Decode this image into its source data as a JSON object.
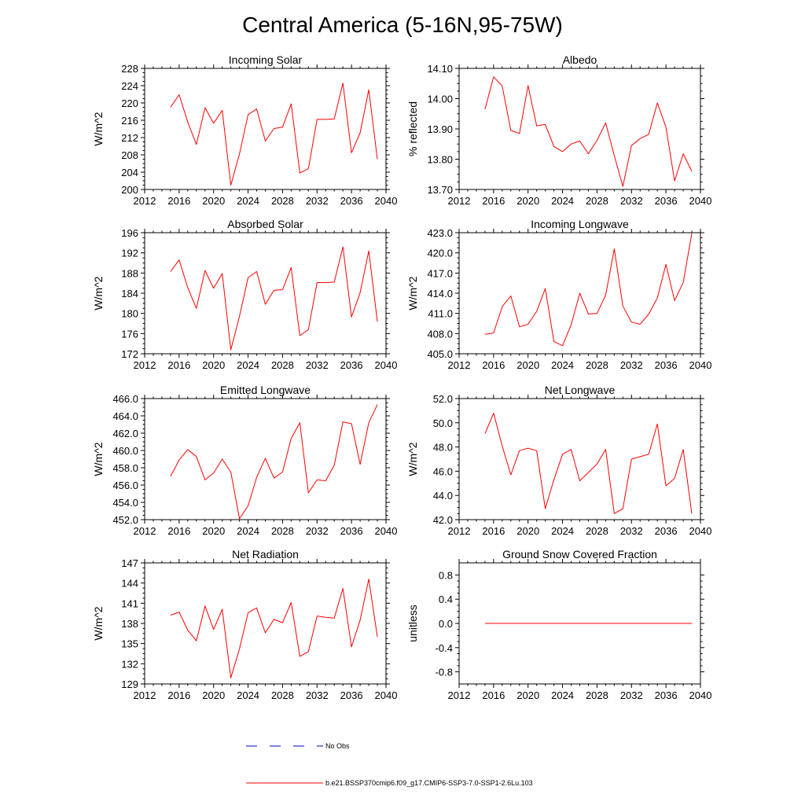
{
  "figure_title": "Central America (5-16N,95-75W)",
  "colors": {
    "model": "#ff0000",
    "obs": "#0000cc",
    "frame": "#000000"
  },
  "legend": [
    {
      "label": "No Obs",
      "style": "dashed",
      "color": "#0000cc"
    },
    {
      "label": "b.e21.BSSP370cmip6.f09_g17.CMIP6-SSP3-7.0-SSP1-2.6Lu.103",
      "style": "solid",
      "color": "#ff0000"
    }
  ],
  "chart_data": [
    {
      "type": "line",
      "title": "Incoming Solar",
      "ylabel": "W/m^2",
      "xlim": [
        2012,
        2040
      ],
      "ylim": [
        200,
        228
      ],
      "xticks": [
        2012,
        2016,
        2020,
        2024,
        2028,
        2032,
        2036,
        2040
      ],
      "xtick_labels": [
        "2012",
        "2016",
        "2020",
        "2024",
        "2028",
        "2032",
        "2036",
        "2040"
      ],
      "yticks": [
        200,
        204,
        208,
        212,
        216,
        220,
        224,
        228
      ],
      "ytick_labels": [
        "200",
        "204",
        "208",
        "212",
        "216",
        "220",
        "224",
        "228"
      ],
      "x": [
        2015,
        2016,
        2017,
        2018,
        2019,
        2020,
        2021,
        2022,
        2023,
        2024,
        2025,
        2026,
        2027,
        2028,
        2029,
        2030,
        2031,
        2032,
        2033,
        2034,
        2035,
        2036,
        2037,
        2038,
        2039
      ],
      "series": [
        {
          "name": "b.e21.BSSP370cmip6.f09_g17.CMIP6-SSP3-7.0-SSP1-2.6Lu.103",
          "values": [
            219.0,
            221.9,
            215.6,
            210.4,
            218.9,
            215.3,
            218.3,
            201.0,
            208.2,
            217.3,
            218.6,
            211.2,
            214.1,
            214.4,
            219.8,
            203.8,
            204.8,
            216.2,
            216.2,
            216.3,
            224.6,
            208.5,
            213.1,
            223.1,
            207.0
          ]
        }
      ]
    },
    {
      "type": "line",
      "title": "Albedo",
      "ylabel": "% reflected",
      "xlim": [
        2012,
        2040
      ],
      "ylim": [
        13.7,
        14.1
      ],
      "xticks": [
        2012,
        2016,
        2020,
        2024,
        2028,
        2032,
        2036,
        2040
      ],
      "xtick_labels": [
        "2012",
        "2016",
        "2020",
        "2024",
        "2028",
        "2032",
        "2036",
        "2040"
      ],
      "yticks": [
        13.7,
        13.8,
        13.9,
        14.0,
        14.1
      ],
      "ytick_labels": [
        "13.70",
        "13.80",
        "13.90",
        "14.00",
        "14.10"
      ],
      "x": [
        2015,
        2016,
        2017,
        2018,
        2019,
        2020,
        2021,
        2022,
        2023,
        2024,
        2025,
        2026,
        2027,
        2028,
        2029,
        2030,
        2031,
        2032,
        2033,
        2034,
        2035,
        2036,
        2037,
        2038,
        2039
      ],
      "series": [
        {
          "name": "b.e21.BSSP370cmip6.f09_g17.CMIP6-SSP3-7.0-SSP1-2.6Lu.103",
          "values": [
            13.965,
            14.072,
            14.042,
            13.895,
            13.885,
            14.043,
            13.91,
            13.915,
            13.842,
            13.825,
            13.85,
            13.86,
            13.818,
            13.862,
            13.92,
            13.812,
            13.71,
            13.845,
            13.868,
            13.882,
            13.986,
            13.906,
            13.728,
            13.818,
            13.76
          ]
        }
      ]
    },
    {
      "type": "line",
      "title": "Absorbed Solar",
      "ylabel": "W/m^2",
      "xlim": [
        2012,
        2040
      ],
      "ylim": [
        172,
        196
      ],
      "xticks": [
        2012,
        2016,
        2020,
        2024,
        2028,
        2032,
        2036,
        2040
      ],
      "xtick_labels": [
        "2012",
        "2016",
        "2020",
        "2024",
        "2028",
        "2032",
        "2036",
        "2040"
      ],
      "yticks": [
        172,
        176,
        180,
        184,
        188,
        192,
        196
      ],
      "ytick_labels": [
        "172",
        "176",
        "180",
        "184",
        "188",
        "192",
        "196"
      ],
      "x": [
        2015,
        2016,
        2017,
        2018,
        2019,
        2020,
        2021,
        2022,
        2023,
        2024,
        2025,
        2026,
        2027,
        2028,
        2029,
        2030,
        2031,
        2032,
        2033,
        2034,
        2035,
        2036,
        2037,
        2038,
        2039
      ],
      "series": [
        {
          "name": "b.e21.BSSP370cmip6.f09_g17.CMIP6-SSP3-7.0-SSP1-2.6Lu.103",
          "values": [
            188.3,
            190.6,
            185.1,
            181.0,
            188.5,
            185.0,
            187.9,
            172.8,
            179.4,
            187.1,
            188.3,
            181.8,
            184.6,
            184.7,
            189.1,
            175.6,
            176.8,
            186.1,
            186.1,
            186.2,
            193.2,
            179.3,
            184.1,
            192.4,
            178.4
          ]
        }
      ]
    },
    {
      "type": "line",
      "title": "Incoming Longwave",
      "ylabel": "W/m^2",
      "xlim": [
        2012,
        2040
      ],
      "ylim": [
        405,
        423
      ],
      "xticks": [
        2012,
        2016,
        2020,
        2024,
        2028,
        2032,
        2036,
        2040
      ],
      "xtick_labels": [
        "2012",
        "2016",
        "2020",
        "2024",
        "2028",
        "2032",
        "2036",
        "2040"
      ],
      "yticks": [
        405,
        408,
        411,
        414,
        417,
        420,
        423
      ],
      "ytick_labels": [
        "405.0",
        "408.0",
        "411.0",
        "414.0",
        "417.0",
        "420.0",
        "423.0"
      ],
      "x": [
        2015,
        2016,
        2017,
        2018,
        2019,
        2020,
        2021,
        2022,
        2023,
        2024,
        2025,
        2026,
        2027,
        2028,
        2029,
        2030,
        2031,
        2032,
        2033,
        2034,
        2035,
        2036,
        2037,
        2038,
        2039
      ],
      "series": [
        {
          "name": "b.e21.BSSP370cmip6.f09_g17.CMIP6-SSP3-7.0-SSP1-2.6Lu.103",
          "values": [
            407.9,
            408.1,
            412.0,
            413.6,
            409.0,
            409.4,
            411.3,
            414.7,
            406.8,
            406.2,
            409.3,
            414.0,
            410.9,
            411.0,
            413.7,
            420.6,
            412.1,
            409.7,
            409.4,
            410.9,
            413.3,
            418.3,
            412.9,
            415.6,
            422.9
          ]
        }
      ]
    },
    {
      "type": "line",
      "title": "Emitted Longwave",
      "ylabel": "W/m^2",
      "xlim": [
        2012,
        2040
      ],
      "ylim": [
        452,
        466
      ],
      "xticks": [
        2012,
        2016,
        2020,
        2024,
        2028,
        2032,
        2036,
        2040
      ],
      "xtick_labels": [
        "2012",
        "2016",
        "2020",
        "2024",
        "2028",
        "2032",
        "2036",
        "2040"
      ],
      "yticks": [
        452,
        454,
        456,
        458,
        460,
        462,
        464,
        466
      ],
      "ytick_labels": [
        "452.0",
        "454.0",
        "456.0",
        "458.0",
        "460.0",
        "462.0",
        "464.0",
        "466.0"
      ],
      "x": [
        2015,
        2016,
        2017,
        2018,
        2019,
        2020,
        2021,
        2022,
        2023,
        2024,
        2025,
        2026,
        2027,
        2028,
        2029,
        2030,
        2031,
        2032,
        2033,
        2034,
        2035,
        2036,
        2037,
        2038,
        2039
      ],
      "series": [
        {
          "name": "b.e21.BSSP370cmip6.f09_g17.CMIP6-SSP3-7.0-SSP1-2.6Lu.103",
          "values": [
            457.0,
            458.9,
            460.1,
            459.3,
            456.6,
            457.4,
            459.0,
            457.5,
            452.1,
            453.6,
            456.9,
            459.1,
            456.8,
            457.5,
            461.4,
            463.2,
            455.1,
            456.6,
            456.5,
            458.3,
            463.3,
            463.1,
            458.4,
            463.2,
            465.3
          ]
        }
      ]
    },
    {
      "type": "line",
      "title": "Net Longwave",
      "ylabel": "W/m^2",
      "xlim": [
        2012,
        2040
      ],
      "ylim": [
        42,
        52
      ],
      "xticks": [
        2012,
        2016,
        2020,
        2024,
        2028,
        2032,
        2036,
        2040
      ],
      "xtick_labels": [
        "2012",
        "2016",
        "2020",
        "2024",
        "2028",
        "2032",
        "2036",
        "2040"
      ],
      "yticks": [
        42,
        44,
        46,
        48,
        50,
        52
      ],
      "ytick_labels": [
        "42.0",
        "44.0",
        "46.0",
        "48.0",
        "50.0",
        "52.0"
      ],
      "x": [
        2015,
        2016,
        2017,
        2018,
        2019,
        2020,
        2021,
        2022,
        2023,
        2024,
        2025,
        2026,
        2027,
        2028,
        2029,
        2030,
        2031,
        2032,
        2033,
        2034,
        2035,
        2036,
        2037,
        2038,
        2039
      ],
      "series": [
        {
          "name": "b.e21.BSSP370cmip6.f09_g17.CMIP6-SSP3-7.0-SSP1-2.6Lu.103",
          "values": [
            49.1,
            50.8,
            48.1,
            45.7,
            47.7,
            47.9,
            47.7,
            42.9,
            45.3,
            47.4,
            47.8,
            45.2,
            45.9,
            46.6,
            47.8,
            42.5,
            42.9,
            47.0,
            47.2,
            47.4,
            49.9,
            44.8,
            45.4,
            47.8,
            42.5
          ]
        }
      ]
    },
    {
      "type": "line",
      "title": "Net Radiation",
      "ylabel": "W/m^2",
      "xlim": [
        2012,
        2040
      ],
      "ylim": [
        129,
        147
      ],
      "xticks": [
        2012,
        2016,
        2020,
        2024,
        2028,
        2032,
        2036,
        2040
      ],
      "xtick_labels": [
        "2012",
        "2016",
        "2020",
        "2024",
        "2028",
        "2032",
        "2036",
        "2040"
      ],
      "yticks": [
        129,
        132,
        135,
        138,
        141,
        144,
        147
      ],
      "ytick_labels": [
        "129",
        "132",
        "135",
        "138",
        "141",
        "144",
        "147"
      ],
      "x": [
        2015,
        2016,
        2017,
        2018,
        2019,
        2020,
        2021,
        2022,
        2023,
        2024,
        2025,
        2026,
        2027,
        2028,
        2029,
        2030,
        2031,
        2032,
        2033,
        2034,
        2035,
        2036,
        2037,
        2038,
        2039
      ],
      "series": [
        {
          "name": "b.e21.BSSP370cmip6.f09_g17.CMIP6-SSP3-7.0-SSP1-2.6Lu.103",
          "values": [
            139.2,
            139.7,
            137.0,
            135.4,
            140.6,
            137.1,
            140.1,
            129.9,
            134.2,
            139.6,
            140.3,
            136.6,
            138.6,
            138.1,
            141.1,
            133.1,
            133.8,
            139.1,
            138.9,
            138.8,
            143.2,
            134.5,
            138.5,
            144.6,
            136.0
          ]
        }
      ]
    },
    {
      "type": "line",
      "title": "Ground Snow Covered Fraction",
      "ylabel": "unitless",
      "xlim": [
        2012,
        2040
      ],
      "ylim": [
        -1.0,
        1.0
      ],
      "xticks": [
        2012,
        2016,
        2020,
        2024,
        2028,
        2032,
        2036,
        2040
      ],
      "xtick_labels": [
        "2012",
        "2016",
        "2020",
        "2024",
        "2028",
        "2032",
        "2036",
        "2040"
      ],
      "yticks": [
        -0.8,
        -0.4,
        0.0,
        0.4,
        0.8
      ],
      "ytick_labels": [
        "-0.8",
        "-0.4",
        "0.0",
        "0.4",
        "0.8"
      ],
      "x": [
        2015,
        2016,
        2017,
        2018,
        2019,
        2020,
        2021,
        2022,
        2023,
        2024,
        2025,
        2026,
        2027,
        2028,
        2029,
        2030,
        2031,
        2032,
        2033,
        2034,
        2035,
        2036,
        2037,
        2038,
        2039
      ],
      "series": [
        {
          "name": "b.e21.BSSP370cmip6.f09_g17.CMIP6-SSP3-7.0-SSP1-2.6Lu.103",
          "values": [
            0,
            0,
            0,
            0,
            0,
            0,
            0,
            0,
            0,
            0,
            0,
            0,
            0,
            0,
            0,
            0,
            0,
            0,
            0,
            0,
            0,
            0,
            0,
            0,
            0
          ]
        }
      ]
    }
  ]
}
